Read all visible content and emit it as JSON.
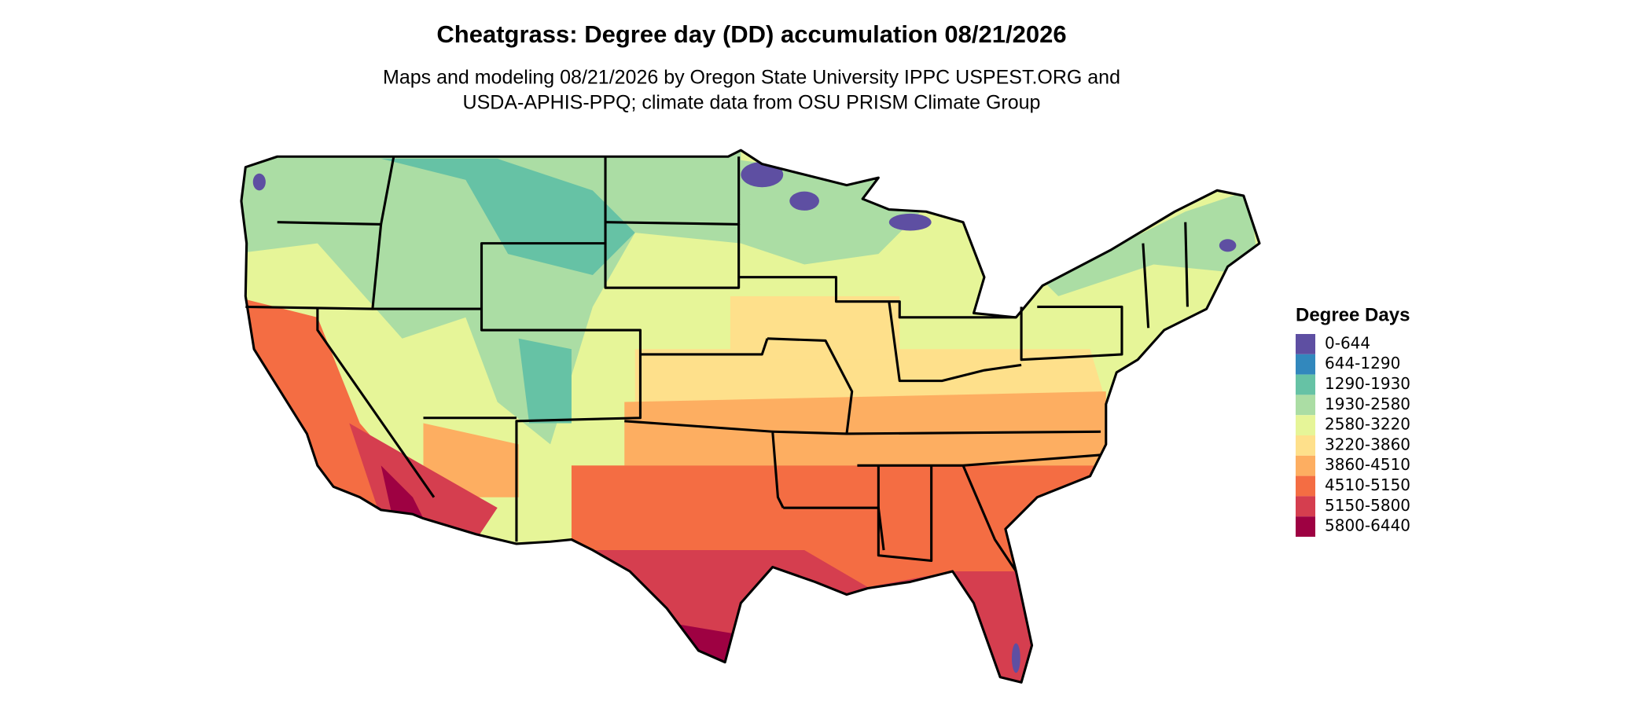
{
  "title": "Cheatgrass: Degree day (DD) accumulation 08/21/2026",
  "subtitle": [
    "Maps and modeling 08/21/2026 by Oregon State University IPPC USPEST.ORG and",
    "USDA-APHIS-PPQ; climate data from OSU PRISM Climate Group"
  ],
  "legend": {
    "title": "Degree Days",
    "items": [
      {
        "label": "0-644",
        "color": "#5e4fa2"
      },
      {
        "label": "644-1290",
        "color": "#3288bd"
      },
      {
        "label": "1290-1930",
        "color": "#66c2a5"
      },
      {
        "label": "1930-2580",
        "color": "#abdda4"
      },
      {
        "label": "2580-3220",
        "color": "#e6f598"
      },
      {
        "label": "3220-3860",
        "color": "#fee08b"
      },
      {
        "label": "3860-4510",
        "color": "#fdae61"
      },
      {
        "label": "4510-5150",
        "color": "#f46d43"
      },
      {
        "label": "5150-5800",
        "color": "#d53e4f"
      },
      {
        "label": "5800-6440",
        "color": "#9e0142"
      }
    ]
  }
}
